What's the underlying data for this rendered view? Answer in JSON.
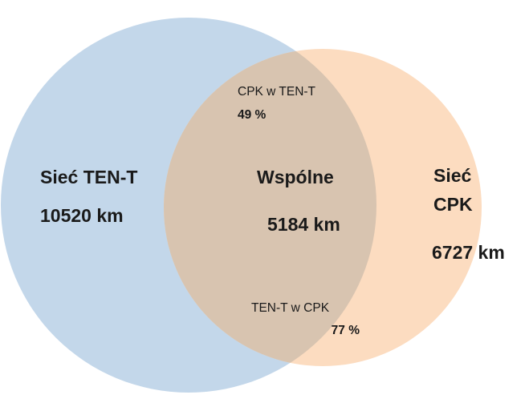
{
  "left_set": {
    "label": "Sieć TEN-T",
    "length": "10520 km"
  },
  "intersection": {
    "label": "Wspólne",
    "length": "5184 km",
    "notes": [
      {
        "label": "CPK w TEN-T",
        "value": "49 %"
      },
      {
        "label": "TEN-T w CPK",
        "value": "77 %"
      }
    ]
  },
  "right_set": {
    "label_lines": [
      "Sieć",
      "CPK"
    ],
    "length": "6727 km"
  }
}
